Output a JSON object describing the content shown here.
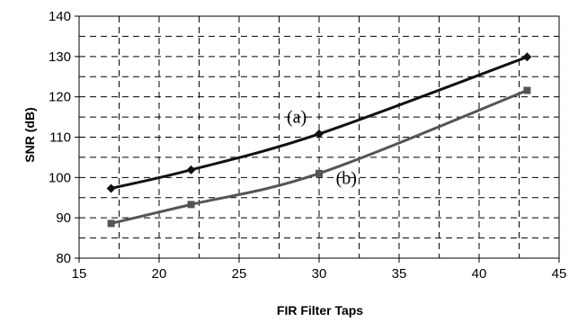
{
  "chart_data": {
    "type": "line",
    "title": "",
    "xlabel": "FIR Filter Taps",
    "ylabel": "SNR (dB)",
    "xlim": [
      15,
      45
    ],
    "ylim": [
      80,
      140
    ],
    "x_ticks": [
      15,
      20,
      25,
      30,
      35,
      40,
      45
    ],
    "y_ticks": [
      80,
      90,
      100,
      110,
      120,
      130,
      140
    ],
    "grid": true,
    "legend": "none",
    "series": [
      {
        "name": "(a)",
        "x": [
          17,
          22,
          30,
          43
        ],
        "values": [
          97.3,
          101.9,
          110.8,
          129.9
        ],
        "marker": "diamond",
        "color": "#111111"
      },
      {
        "name": "(b)",
        "x": [
          17,
          22,
          30,
          43
        ],
        "values": [
          88.6,
          93.3,
          101.0,
          121.6
        ],
        "marker": "square",
        "color": "#555555"
      }
    ]
  }
}
